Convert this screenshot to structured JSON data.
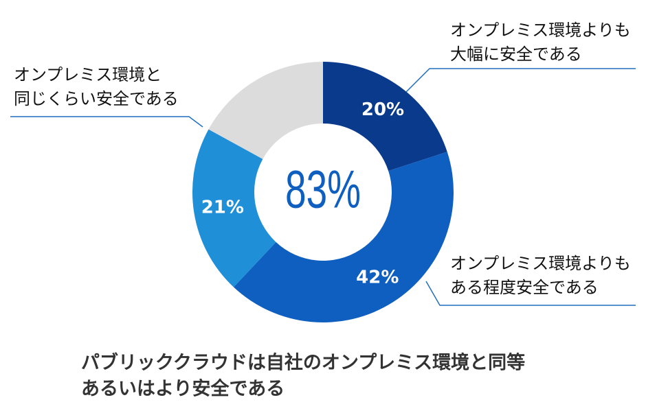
{
  "chart_data": {
    "type": "donut",
    "title": [
      "パブリッククラウドは自社のオンプレミス環境と同等",
      "あるいはより安全である"
    ],
    "center_label": "83%",
    "categories": [
      [
        "オンプレミス環境よりも",
        "大幅に安全である"
      ],
      [
        "オンプレミス環境よりも",
        "ある程度安全である"
      ],
      [
        "オンプレミス環境と",
        "同じくらい安全である"
      ],
      null
    ],
    "values": [
      20,
      42,
      21,
      17
    ],
    "value_labels": [
      "20%",
      "42%",
      "21%",
      null
    ],
    "colors": [
      "#0a3a8c",
      "#0f5fc0",
      "#1f8fd8",
      "#dcdcdc"
    ]
  }
}
